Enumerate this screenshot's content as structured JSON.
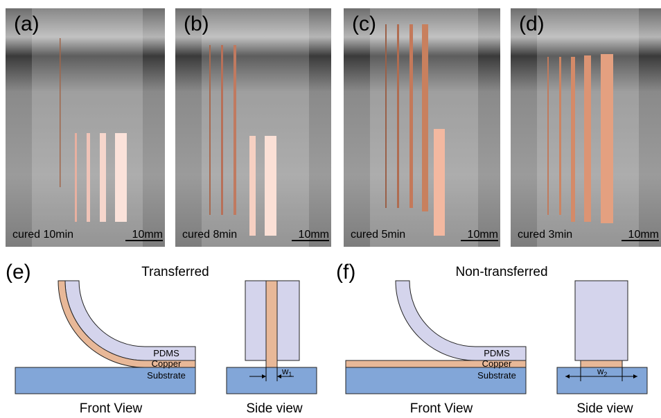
{
  "photos": [
    {
      "label": "(a)",
      "caption": "cured 10min",
      "scale_bar": "10mm"
    },
    {
      "label": "(b)",
      "caption": "cured 8min",
      "scale_bar": "10mm"
    },
    {
      "label": "(c)",
      "caption": "cured 5min",
      "scale_bar": "10mm"
    },
    {
      "label": "(d)",
      "caption": "cured 3min",
      "scale_bar": "10mm"
    }
  ],
  "diagrams": [
    {
      "label": "(e)",
      "title": "Transferred",
      "layers": {
        "pdms": "PDMS",
        "copper": "Copper",
        "substrate": "Substrate"
      },
      "width_symbol": "w",
      "width_index": "1",
      "front_view": "Front View",
      "side_view": "Side view"
    },
    {
      "label": "(f)",
      "title": "Non-transferred",
      "layers": {
        "pdms": "PDMS",
        "copper": "Copper",
        "substrate": "Substrate"
      },
      "width_symbol": "w",
      "width_index": "2",
      "front_view": "Front View",
      "side_view": "Side view"
    }
  ]
}
